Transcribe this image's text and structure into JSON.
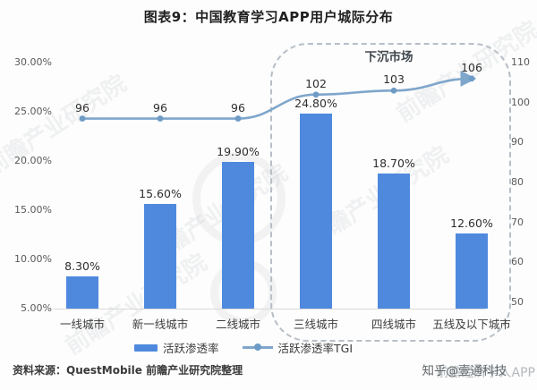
{
  "title": "图表9：中国教育学习APP用户城际分布",
  "watermark_text": "前瞻产业研究院",
  "legend": [
    {
      "label": "活跃渗透率",
      "type": "bar"
    },
    {
      "label": "活跃渗透率TGI",
      "type": "line"
    }
  ],
  "footer": {
    "source": "资料来源：QuestMobile 前瞻产业研究院整理",
    "credit": "知乎@壹通科技",
    "watermark": "前瞻经济学人APP"
  },
  "colors": {
    "bar": "#4e89de",
    "line": "#7fa6cb",
    "marker": "#6e9bc5",
    "dashed_box": "#b7bec6",
    "axis_text": "#595959"
  },
  "chart_data": {
    "type": "bar+line",
    "title": "图表9：中国教育学习APP用户城际分布",
    "categories": [
      "一线城市",
      "新一线城市",
      "二线城市",
      "三线城市",
      "四线城市",
      "五线及以下城市"
    ],
    "series": [
      {
        "name": "活跃渗透率",
        "type": "bar",
        "unit": "%",
        "values": [
          8.3,
          15.6,
          19.9,
          24.8,
          18.7,
          12.6
        ],
        "labels": [
          "8.30%",
          "15.60%",
          "19.90%",
          "24.80%",
          "18.70%",
          "12.60%"
        ]
      },
      {
        "name": "活跃渗透率TGI",
        "type": "line",
        "values": [
          96,
          96,
          96,
          102,
          103,
          106
        ],
        "labels": [
          "96",
          "96",
          "96",
          "102",
          "103",
          "106"
        ]
      }
    ],
    "left_axis": {
      "ticks": [
        "30.00%",
        "25.00%",
        "20.00%",
        "15.00%",
        "10.00%",
        "5.00%"
      ],
      "min": 5,
      "max": 30,
      "unit": "%"
    },
    "right_axis": {
      "ticks": [
        "110",
        "100",
        "90",
        "80",
        "70",
        "60",
        "50"
      ],
      "min": 50,
      "max": 110
    },
    "grid": false,
    "legend_position": "bottom",
    "annotation": {
      "label": "下沉市场",
      "covers": [
        "三线城市",
        "四线城市",
        "五线及以下城市"
      ]
    }
  }
}
